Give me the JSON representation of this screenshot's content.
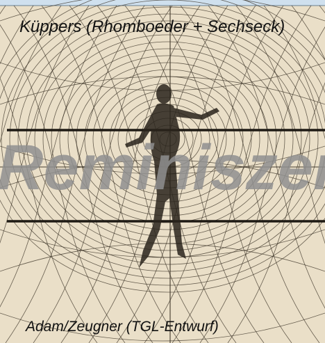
{
  "caption_top": "Küppers (Rhomboeder + Sechseck)",
  "watermark": "Reminiszen",
  "caption_bottom": "Adam/Zeugner (TGL-Entwurf)"
}
